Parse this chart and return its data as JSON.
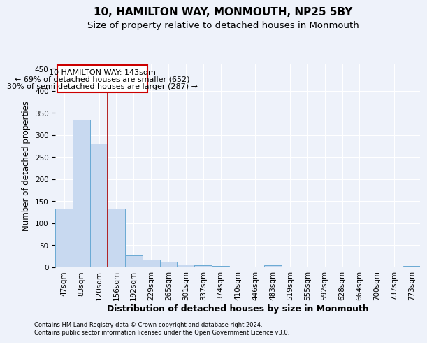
{
  "title": "10, HAMILTON WAY, MONMOUTH, NP25 5BY",
  "subtitle": "Size of property relative to detached houses in Monmouth",
  "xlabel": "Distribution of detached houses by size in Monmouth",
  "ylabel": "Number of detached properties",
  "bar_color": "#c8d9f0",
  "bar_edge_color": "#6aaad4",
  "categories": [
    "47sqm",
    "83sqm",
    "120sqm",
    "156sqm",
    "192sqm",
    "229sqm",
    "265sqm",
    "301sqm",
    "337sqm",
    "374sqm",
    "410sqm",
    "446sqm",
    "483sqm",
    "519sqm",
    "555sqm",
    "592sqm",
    "628sqm",
    "664sqm",
    "700sqm",
    "737sqm",
    "773sqm"
  ],
  "values": [
    134,
    335,
    281,
    133,
    27,
    18,
    13,
    6,
    5,
    3,
    0,
    0,
    4,
    0,
    0,
    0,
    0,
    0,
    0,
    0,
    3
  ],
  "ylim": [
    0,
    460
  ],
  "yticks": [
    0,
    50,
    100,
    150,
    200,
    250,
    300,
    350,
    400,
    450
  ],
  "vline_x": 2.5,
  "vline_color": "#aa0000",
  "annotation_line1": "10 HAMILTON WAY: 143sqm",
  "annotation_line2": "← 69% of detached houses are smaller (652)",
  "annotation_line3": "30% of semi-detached houses are larger (287) →",
  "annotation_box_color": "#ffffff",
  "annotation_box_edge": "#cc0000",
  "footnote1": "Contains HM Land Registry data © Crown copyright and database right 2024.",
  "footnote2": "Contains public sector information licensed under the Open Government Licence v3.0.",
  "background_color": "#eef2fa",
  "grid_color": "#ffffff",
  "title_fontsize": 11,
  "subtitle_fontsize": 9.5,
  "tick_fontsize": 7.5,
  "ylabel_fontsize": 8.5,
  "xlabel_fontsize": 9,
  "annot_fontsize": 8,
  "footnote_fontsize": 6
}
